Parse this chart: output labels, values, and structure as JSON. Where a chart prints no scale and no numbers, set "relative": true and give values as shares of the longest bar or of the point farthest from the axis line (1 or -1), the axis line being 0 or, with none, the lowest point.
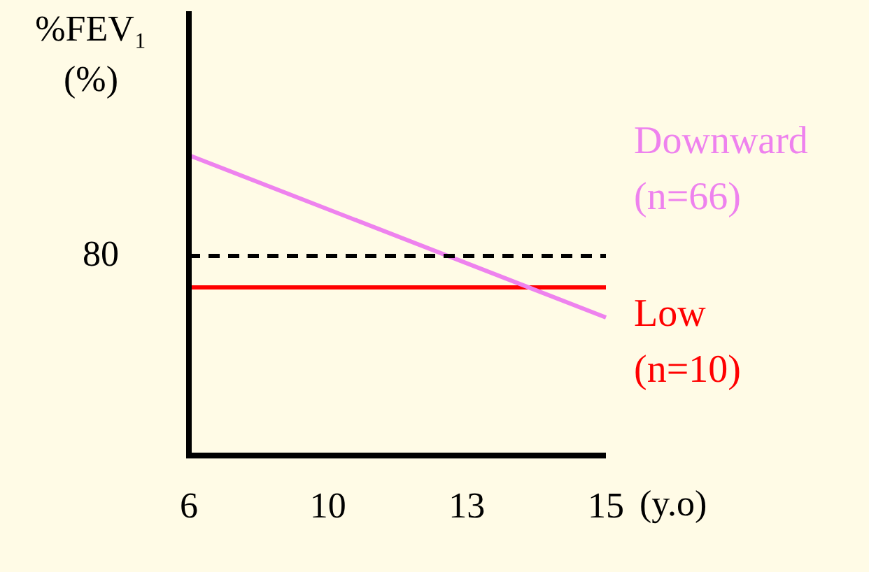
{
  "chart_data": {
    "type": "line",
    "relative": true,
    "ylabel": "%FEV₁ (%)",
    "xlabel": "(y.o)",
    "categories": [
      "6",
      "10",
      "13",
      "15"
    ],
    "series": [
      {
        "name": "Downward (n=66)",
        "color": "#ee82ee",
        "values": [
          1,
          null,
          null,
          0.46
        ]
      },
      {
        "name": "Low (n=10)",
        "color": "#ff0000",
        "values": [
          0.56,
          null,
          null,
          0.56
        ]
      }
    ],
    "ref_lines": [
      {
        "axis": "y",
        "value": 0.665,
        "color": "#000000",
        "line_style": "dashed"
      }
    ],
    "annotations": [
      "80"
    ],
    "grid": false,
    "legend": false,
    "marker": "none",
    "line_style": "solid"
  }
}
